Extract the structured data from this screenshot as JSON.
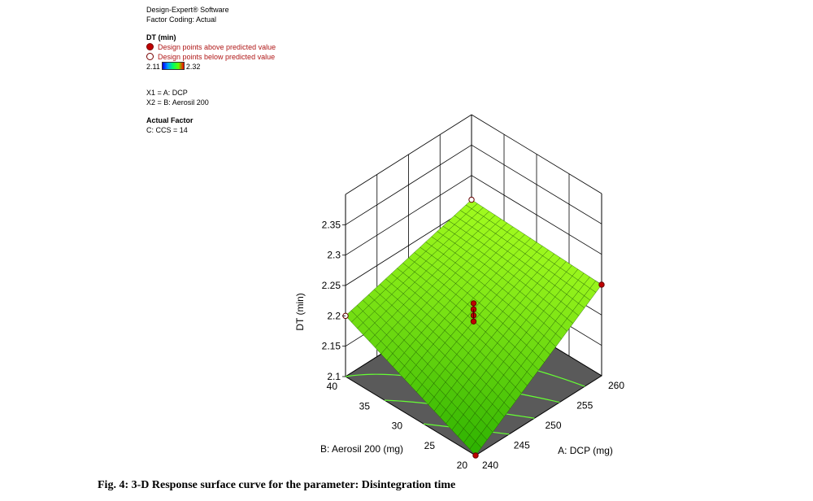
{
  "panel": {
    "software": "Design-Expert® Software",
    "factor_coding": "Factor Coding: Actual",
    "response": "DT (min)",
    "above_label": "Design points above predicted value",
    "below_label": "Design points below predicted value",
    "cbar_min": "2.11",
    "cbar_max": "2.32",
    "x1": "X1 = A: DCP",
    "x2": "X2 = B: Aerosil 200",
    "actual_factor": "Actual Factor",
    "actual_value": "C: CCS = 14"
  },
  "caption": "Fig. 4: 3-D Response surface curve for the parameter: Disintegration time",
  "chart_data": {
    "type": "surface3d",
    "zlabel": "DT (min)",
    "xlabel": "A: DCP (mg)",
    "ylabel": "B: Aerosil 200 (mg)",
    "x_ticks": [
      "240",
      "245",
      "250",
      "255",
      "260"
    ],
    "y_ticks": [
      "20",
      "25",
      "30",
      "35",
      "40"
    ],
    "z_ticks": [
      "2.1",
      "2.15",
      "2.2",
      "2.25",
      "2.3",
      "2.35"
    ],
    "xlim": [
      240,
      260
    ],
    "ylim": [
      20,
      40
    ],
    "zlim": [
      2.1,
      2.35
    ],
    "corners": {
      "a240_b20": 2.1,
      "a240_b40": 2.2,
      "a260_b20": 2.25,
      "a260_b40": 2.26
    },
    "design_points": [
      {
        "a": 240,
        "b": 20,
        "dt": 2.1,
        "type": "above"
      },
      {
        "a": 240,
        "b": 40,
        "dt": 2.2,
        "type": "below"
      },
      {
        "a": 260,
        "b": 20,
        "dt": 2.25,
        "type": "above"
      },
      {
        "a": 260,
        "b": 40,
        "dt": 2.26,
        "type": "below"
      },
      {
        "a": 250,
        "b": 30,
        "dt": 2.22,
        "type": "above"
      },
      {
        "a": 250,
        "b": 30,
        "dt": 2.21,
        "type": "above"
      },
      {
        "a": 250,
        "b": 30,
        "dt": 2.2,
        "type": "above"
      },
      {
        "a": 250,
        "b": 30,
        "dt": 2.19,
        "type": "above"
      }
    ],
    "colors": {
      "surface_low": "#2bb000",
      "surface_high": "#a8ff20",
      "floor": "#5a5a5a",
      "contour": "#66ff33",
      "point_above": "#c00000"
    }
  }
}
